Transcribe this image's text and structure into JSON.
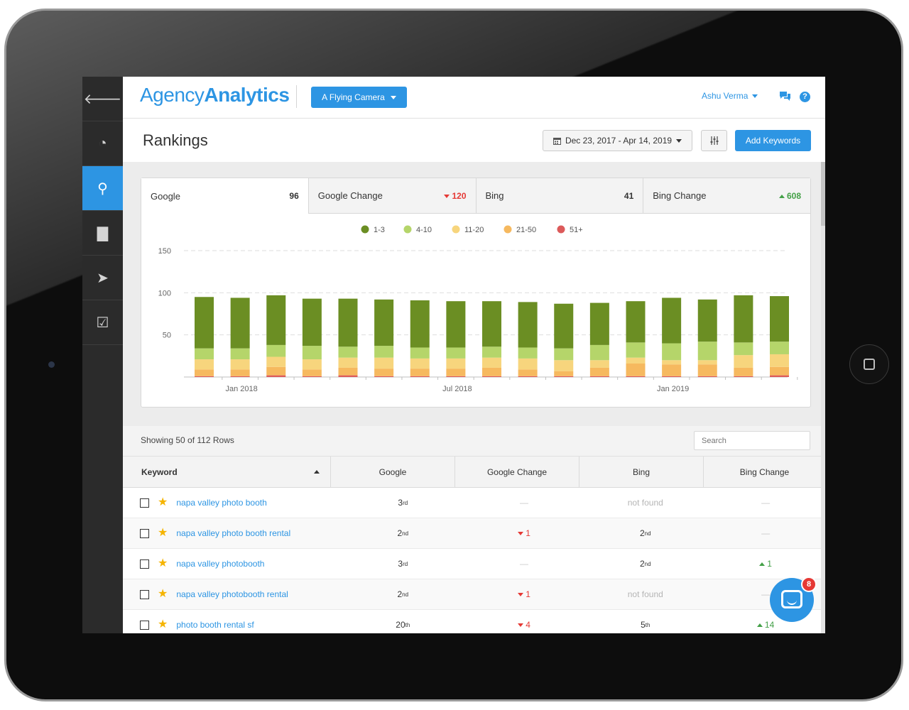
{
  "app": {
    "logo_light": "Agency",
    "logo_bold": "Analytics",
    "client_selector": "A Flying Camera",
    "user_name": "Ashu Verma",
    "help_glyph": "?"
  },
  "sidebar": {
    "items": [
      {
        "name": "back",
        "icon": "arrow-left-icon",
        "glyph": "🡐",
        "active": false
      },
      {
        "name": "dashboard",
        "icon": "gauge-icon",
        "glyph": "◔",
        "active": false
      },
      {
        "name": "rankings",
        "icon": "search-icon",
        "glyph": "⚲",
        "active": true
      },
      {
        "name": "reports",
        "icon": "bar-chart-icon",
        "glyph": "▇",
        "active": false
      },
      {
        "name": "campaigns",
        "icon": "paper-plane-icon",
        "glyph": "➤",
        "active": false
      },
      {
        "name": "tasks",
        "icon": "clipboard-check-icon",
        "glyph": "☑",
        "active": false
      }
    ]
  },
  "header": {
    "title": "Rankings",
    "date_range": "Dec 23, 2017 - Apr 14, 2019",
    "add_keywords": "Add Keywords"
  },
  "tabs": [
    {
      "label": "Google",
      "value": "96",
      "trend": "none"
    },
    {
      "label": "Google Change",
      "value": "120",
      "trend": "down"
    },
    {
      "label": "Bing",
      "value": "41",
      "trend": "none"
    },
    {
      "label": "Bing Change",
      "value": "608",
      "trend": "up"
    }
  ],
  "chart_data": {
    "type": "bar",
    "stacked": true,
    "legend_position": "top",
    "grid": true,
    "ylim": [
      0,
      150
    ],
    "yticks": [
      50,
      100,
      150
    ],
    "xtick_labels": [
      {
        "label": "Jan 2018",
        "index": 1
      },
      {
        "label": "Jul 2018",
        "index": 7
      },
      {
        "label": "Jan 2019",
        "index": 13
      }
    ],
    "categories_count": 17,
    "series": [
      {
        "name": "1-3",
        "color": "#6b8e23",
        "values": [
          61,
          60,
          59,
          56,
          57,
          55,
          56,
          55,
          54,
          54,
          53,
          50,
          49,
          54,
          50,
          56,
          54
        ]
      },
      {
        "name": "4-10",
        "color": "#b5d56a",
        "values": [
          13,
          13,
          14,
          16,
          13,
          14,
          13,
          13,
          13,
          13,
          14,
          18,
          18,
          20,
          22,
          15,
          15
        ]
      },
      {
        "name": "11-20",
        "color": "#f7d57d",
        "values": [
          12,
          12,
          12,
          12,
          12,
          13,
          12,
          12,
          12,
          13,
          13,
          9,
          7,
          5,
          5,
          15,
          15
        ]
      },
      {
        "name": "21-50",
        "color": "#f6b95f",
        "values": [
          8,
          8,
          10,
          8,
          9,
          9,
          9,
          9,
          10,
          8,
          6,
          10,
          15,
          14,
          14,
          10,
          10
        ]
      },
      {
        "name": "51+",
        "color": "#dc5a5a",
        "values": [
          1,
          1,
          2,
          1,
          2,
          1,
          1,
          1,
          1,
          1,
          1,
          1,
          1,
          1,
          1,
          1,
          2
        ]
      }
    ]
  },
  "table": {
    "showing": "Showing 50 of 112 Rows",
    "search_placeholder": "Search",
    "columns": [
      "Keyword",
      "Google",
      "Google Change",
      "Bing",
      "Bing Change"
    ],
    "rows": [
      {
        "keyword": "napa valley photo booth",
        "google": "3",
        "google_sup": "rd",
        "google_change": "—",
        "gc_trend": "none",
        "bing": "not found",
        "bing_sup": "",
        "bing_change": "—",
        "bc_trend": "none"
      },
      {
        "keyword": "napa valley photo booth rental",
        "google": "2",
        "google_sup": "nd",
        "google_change": "1",
        "gc_trend": "down",
        "bing": "2",
        "bing_sup": "nd",
        "bing_change": "—",
        "bc_trend": "none"
      },
      {
        "keyword": "napa valley photobooth",
        "google": "3",
        "google_sup": "rd",
        "google_change": "—",
        "gc_trend": "none",
        "bing": "2",
        "bing_sup": "nd",
        "bing_change": "1",
        "bc_trend": "up"
      },
      {
        "keyword": "napa valley photobooth rental",
        "google": "2",
        "google_sup": "nd",
        "google_change": "1",
        "gc_trend": "down",
        "bing": "not found",
        "bing_sup": "",
        "bing_change": "—",
        "bc_trend": "none"
      },
      {
        "keyword": "photo booth rental sf",
        "google": "20",
        "google_sup": "th",
        "google_change": "4",
        "gc_trend": "down",
        "bing": "5",
        "bing_sup": "th",
        "bing_change": "14",
        "bc_trend": "up"
      }
    ]
  },
  "intercom": {
    "unread": "8"
  }
}
